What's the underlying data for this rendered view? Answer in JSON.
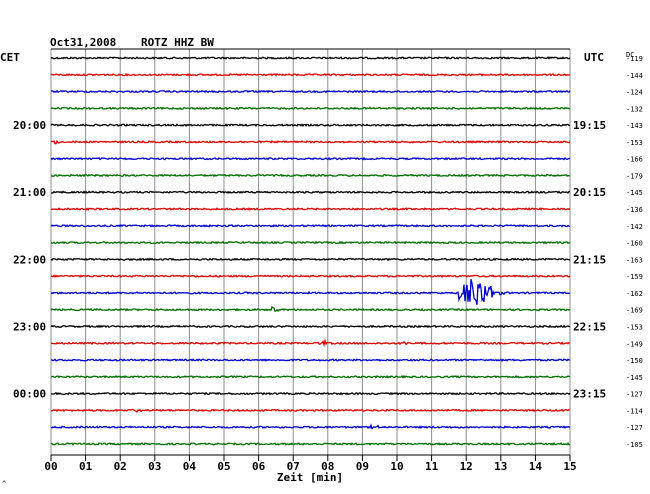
{
  "header": {
    "date": "Oct31,2008",
    "station": "ROTZ HHZ BW",
    "left_zone": "CET",
    "right_zone": "UTC",
    "dc_label": "DC"
  },
  "chart_data": {
    "type": "line",
    "xlabel": "Zeit [min]",
    "xlim": [
      0,
      15
    ],
    "x_ticks": [
      "00",
      "01",
      "02",
      "03",
      "04",
      "05",
      "06",
      "07",
      "08",
      "09",
      "10",
      "11",
      "12",
      "13",
      "14",
      "15"
    ],
    "trace_colors": [
      "#000000",
      "#e00000",
      "#0000d0",
      "#007000"
    ],
    "traces": [
      {
        "dc": "-119",
        "left_time": "",
        "right_time": ""
      },
      {
        "dc": "-144",
        "left_time": "",
        "right_time": ""
      },
      {
        "dc": "-124",
        "left_time": "",
        "right_time": ""
      },
      {
        "dc": "-132",
        "left_time": "",
        "right_time": ""
      },
      {
        "dc": "-143",
        "left_time": "20:00",
        "right_time": "19:15"
      },
      {
        "dc": "-153",
        "left_time": "",
        "right_time": ""
      },
      {
        "dc": "-166",
        "left_time": "",
        "right_time": ""
      },
      {
        "dc": "-179",
        "left_time": "",
        "right_time": ""
      },
      {
        "dc": "-145",
        "left_time": "21:00",
        "right_time": "20:15"
      },
      {
        "dc": "-136",
        "left_time": "",
        "right_time": ""
      },
      {
        "dc": "-142",
        "left_time": "",
        "right_time": ""
      },
      {
        "dc": "-160",
        "left_time": "",
        "right_time": ""
      },
      {
        "dc": "-163",
        "left_time": "22:00",
        "right_time": "21:15"
      },
      {
        "dc": "-159",
        "left_time": "",
        "right_time": ""
      },
      {
        "dc": "-162",
        "left_time": "",
        "right_time": ""
      },
      {
        "dc": "-169",
        "left_time": "",
        "right_time": ""
      },
      {
        "dc": "-153",
        "left_time": "23:00",
        "right_time": "22:15"
      },
      {
        "dc": "-149",
        "left_time": "",
        "right_time": ""
      },
      {
        "dc": "-150",
        "left_time": "",
        "right_time": ""
      },
      {
        "dc": "-145",
        "left_time": "",
        "right_time": ""
      },
      {
        "dc": "-127",
        "left_time": "00:00",
        "right_time": "23:15"
      },
      {
        "dc": "-114",
        "left_time": "",
        "right_time": ""
      },
      {
        "dc": "-127",
        "left_time": "",
        "right_time": ""
      },
      {
        "dc": "-105",
        "left_time": "",
        "right_time": ""
      }
    ],
    "events": [
      {
        "trace": 5,
        "minute": 0.1,
        "amp": 3
      },
      {
        "trace": 14,
        "minute": 12.1,
        "amp": 16
      },
      {
        "trace": 15,
        "minute": 6.4,
        "amp": 3
      },
      {
        "trace": 17,
        "minute": 7.8,
        "amp": 3
      },
      {
        "trace": 17,
        "minute": 10.2,
        "amp": 2
      },
      {
        "trace": 21,
        "minute": 2.4,
        "amp": 2
      },
      {
        "trace": 22,
        "minute": 9.3,
        "amp": 2
      }
    ]
  },
  "footer": {
    "corner_mark": "^"
  }
}
